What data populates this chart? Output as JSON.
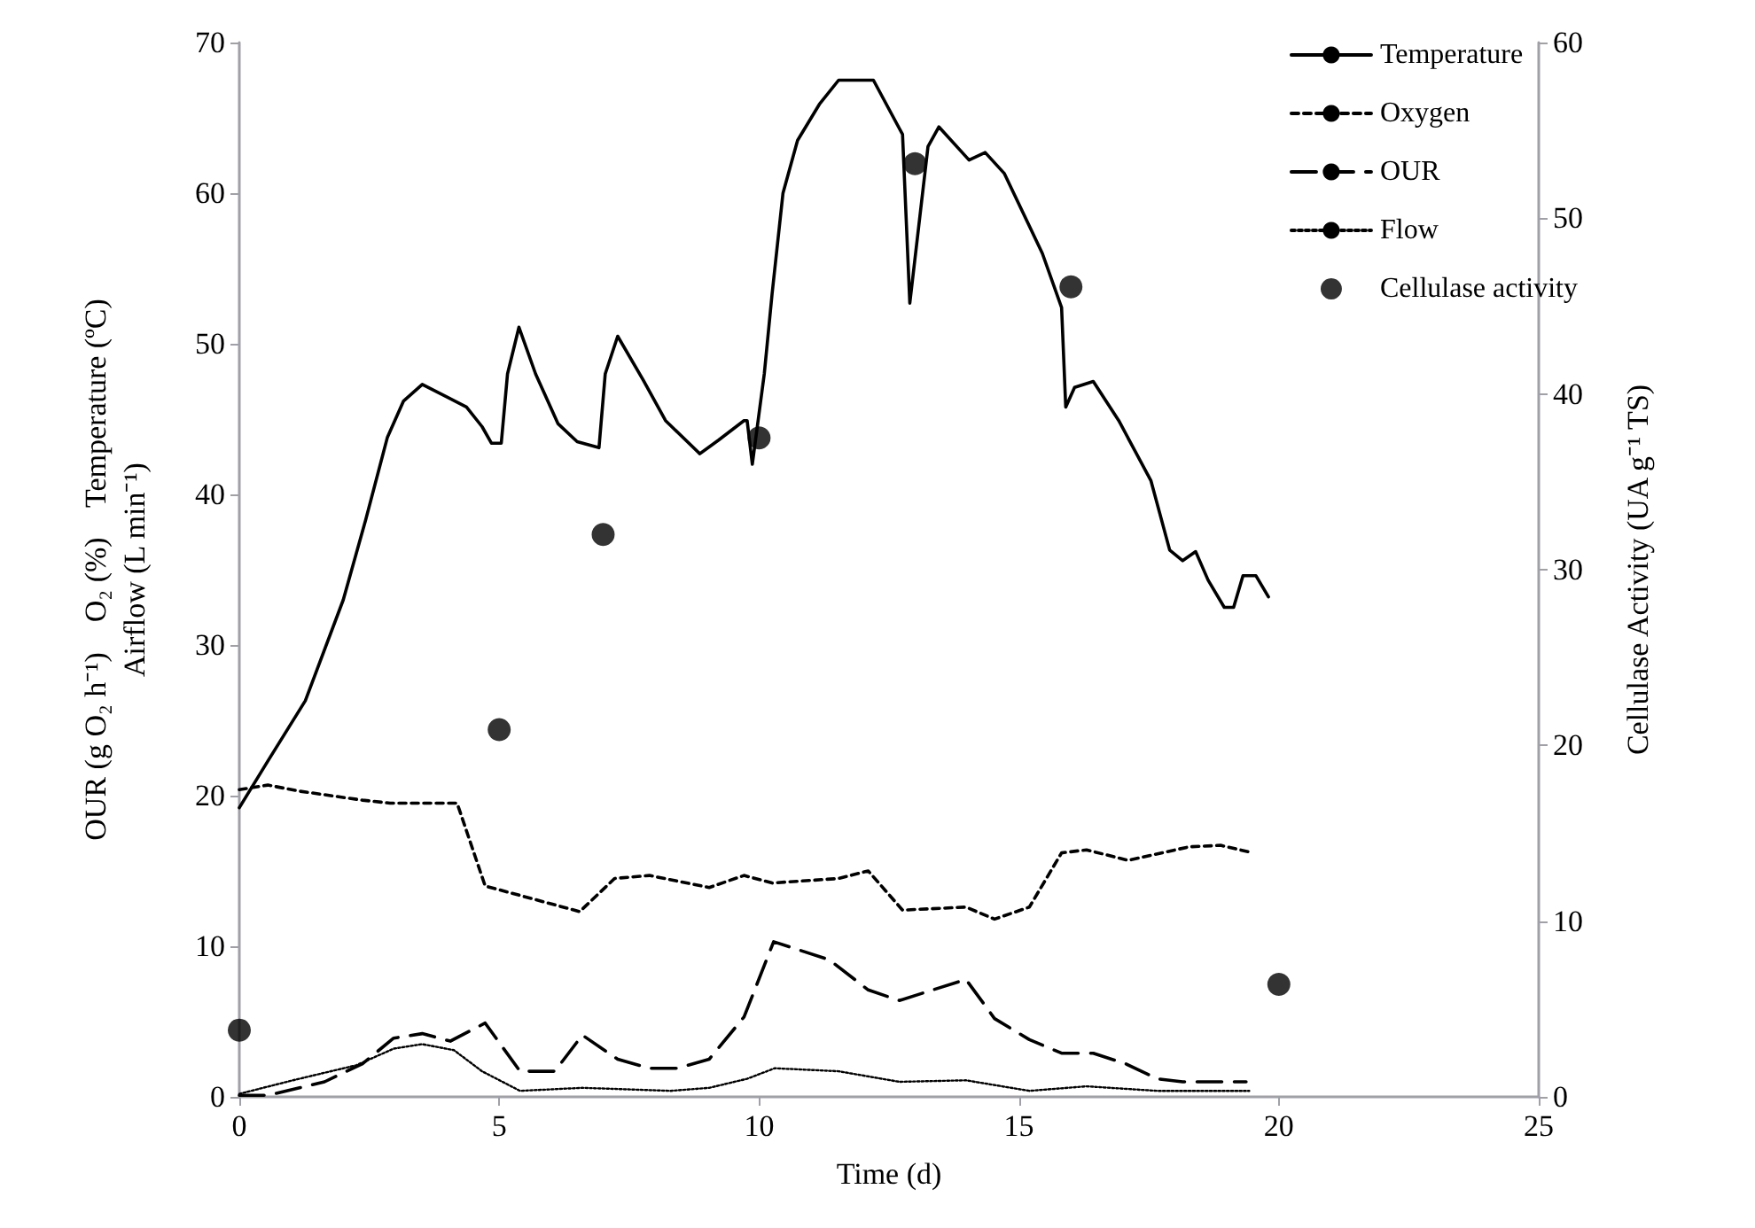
{
  "chart_data": {
    "type": "line",
    "xlabel": "Time (d)",
    "ylabel": "OUR (g O₂ h⁻¹)    O₂ (%)    Temperature (ºC)\nAirflow (L min⁻¹)",
    "y2label": "Cellulase Activity (UA g⁻¹ TS)",
    "xlim": [
      0,
      25
    ],
    "xticks": [
      0,
      5,
      10,
      15,
      20,
      25
    ],
    "ylim": [
      0,
      70
    ],
    "yticks": [
      0,
      10,
      20,
      30,
      40,
      50,
      60,
      70
    ],
    "y2lim": [
      0,
      60
    ],
    "y2ticks": [
      0,
      10,
      20,
      30,
      40,
      50,
      60
    ],
    "grid": false,
    "legend": "top right",
    "series": [
      {
        "name": "Temperature",
        "color": "#000000",
        "line_style": "solid",
        "marker": "none",
        "x": [
          0,
          0.55,
          1.27,
          2.0,
          2.43,
          2.85,
          3.16,
          3.52,
          4.37,
          4.67,
          4.85,
          5.04,
          5.16,
          5.38,
          5.7,
          6.13,
          6.5,
          6.92,
          7.04,
          7.28,
          7.77,
          8.2,
          8.86,
          9.22,
          9.71,
          9.77,
          9.87,
          10.1,
          10.25,
          10.46,
          10.74,
          11.16,
          11.53,
          12.2,
          12.76,
          12.9,
          13.25,
          13.46,
          14.04,
          14.35,
          14.72,
          15.45,
          15.82,
          15.9,
          16.07,
          16.43,
          16.92,
          17.54,
          17.9,
          18.15,
          18.4,
          18.64,
          18.95,
          19.13,
          19.31,
          19.56,
          19.8
        ],
        "values": [
          19.2,
          22.3,
          26.3,
          33.0,
          38.3,
          43.8,
          46.2,
          47.3,
          45.8,
          44.5,
          43.4,
          43.4,
          48.0,
          51.1,
          48.0,
          44.7,
          43.5,
          43.1,
          48.0,
          50.5,
          47.6,
          44.9,
          42.7,
          43.6,
          44.9,
          44.9,
          42.0,
          48.0,
          53.3,
          60.0,
          63.5,
          65.9,
          67.5,
          67.5,
          63.9,
          52.7,
          63.1,
          64.4,
          62.2,
          62.7,
          61.3,
          56.0,
          52.4,
          45.8,
          47.1,
          47.5,
          44.9,
          40.9,
          36.3,
          35.6,
          36.2,
          34.3,
          32.5,
          32.5,
          34.6,
          34.6,
          33.2
        ]
      },
      {
        "name": "Oxygen",
        "color": "#000000",
        "line_style": "dashed",
        "marker": "none",
        "x": [
          0,
          0.55,
          1.15,
          2.37,
          2.9,
          4.19,
          4.73,
          6.55,
          7.22,
          7.89,
          9.04,
          9.71,
          10.25,
          11.53,
          12.1,
          12.76,
          13.98,
          14.53,
          15.2,
          15.82,
          16.3,
          17.1,
          18.27,
          18.88,
          19.5
        ],
        "values": [
          20.4,
          20.7,
          20.3,
          19.7,
          19.5,
          19.5,
          14.0,
          12.3,
          14.5,
          14.7,
          13.9,
          14.7,
          14.2,
          14.5,
          15.0,
          12.4,
          12.6,
          11.8,
          12.6,
          16.2,
          16.4,
          15.7,
          16.6,
          16.7,
          16.2
        ]
      },
      {
        "name": "OUR",
        "color": "#000000",
        "line_style": "dashed",
        "marker": "none",
        "x": [
          0,
          0.55,
          1.64,
          2.37,
          2.97,
          3.52,
          4.06,
          4.73,
          5.4,
          6.07,
          6.6,
          7.28,
          7.89,
          8.43,
          9.04,
          9.71,
          10.28,
          11.35,
          12.1,
          12.7,
          13.98,
          14.53,
          15.2,
          15.82,
          16.43,
          17.05,
          17.66,
          18.15,
          19.37
        ],
        "values": [
          0.1,
          0.1,
          1.0,
          2.2,
          3.9,
          4.2,
          3.7,
          4.9,
          1.7,
          1.7,
          4.1,
          2.5,
          1.9,
          1.9,
          2.5,
          5.3,
          10.3,
          9.1,
          7.1,
          6.4,
          7.8,
          5.2,
          3.8,
          2.9,
          2.9,
          2.2,
          1.2,
          1.0,
          1.0
        ]
      },
      {
        "name": "Flow",
        "color": "#000000",
        "line_style": "dotted",
        "marker": "none",
        "x": [
          0,
          1.03,
          2.25,
          2.97,
          3.52,
          4.13,
          4.67,
          5.4,
          6.6,
          8.3,
          9.04,
          9.77,
          10.3,
          11.53,
          12.7,
          13.98,
          15.2,
          16.3,
          17.66,
          19.43
        ],
        "values": [
          0.2,
          1.1,
          2.1,
          3.2,
          3.5,
          3.1,
          1.7,
          0.4,
          0.6,
          0.4,
          0.6,
          1.2,
          1.9,
          1.7,
          1.0,
          1.1,
          0.4,
          0.7,
          0.4,
          0.4
        ]
      },
      {
        "name": "Cellulase activity",
        "type": "scatter",
        "axis": "y2",
        "color": "#000000",
        "marker": "circle",
        "x": [
          0,
          5,
          7,
          10,
          13,
          16,
          20
        ],
        "values": [
          3.8,
          20.9,
          32.0,
          37.5,
          53.1,
          46.1,
          6.4
        ]
      }
    ]
  }
}
